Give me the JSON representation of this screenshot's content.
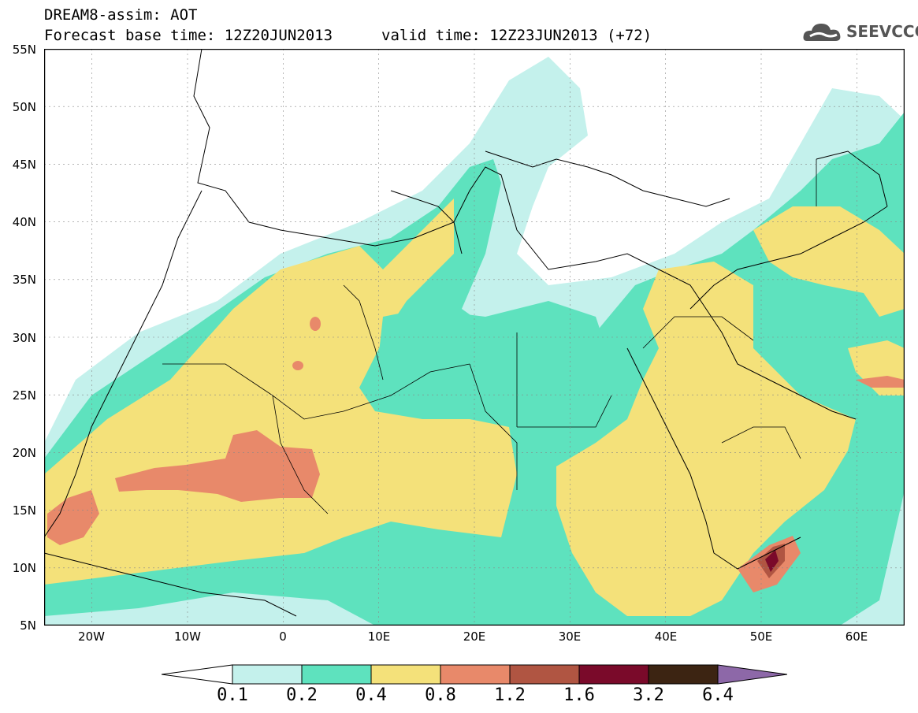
{
  "title": {
    "line1": "DREAM8-assim: AOT",
    "line2": "Forecast base time: 12Z20JUN2013",
    "line3": "valid time: 12Z23JUN2013 (+72)"
  },
  "logo": {
    "text": "SEEVCCC",
    "icon": "cloud-icon"
  },
  "axes": {
    "lat_labels": [
      "55N",
      "50N",
      "45N",
      "40N",
      "35N",
      "30N",
      "25N",
      "20N",
      "15N",
      "10N",
      "5N"
    ],
    "lon_labels": [
      "20W",
      "10W",
      "0",
      "10E",
      "20E",
      "30E",
      "40E",
      "50E",
      "60E"
    ],
    "lat_range": [
      5,
      55
    ],
    "lon_range": [
      -25,
      65
    ]
  },
  "colorbar": {
    "labels": [
      "0.1",
      "0.2",
      "0.4",
      "0.8",
      "1.2",
      "1.6",
      "3.2",
      "6.4"
    ],
    "colors": [
      "#c4f1ec",
      "#5ee2be",
      "#f4e17a",
      "#e8896a",
      "#b05542",
      "#7a0a2a",
      "#3c2412",
      "#8d68a8"
    ],
    "below_color": "#ffffff"
  }
}
